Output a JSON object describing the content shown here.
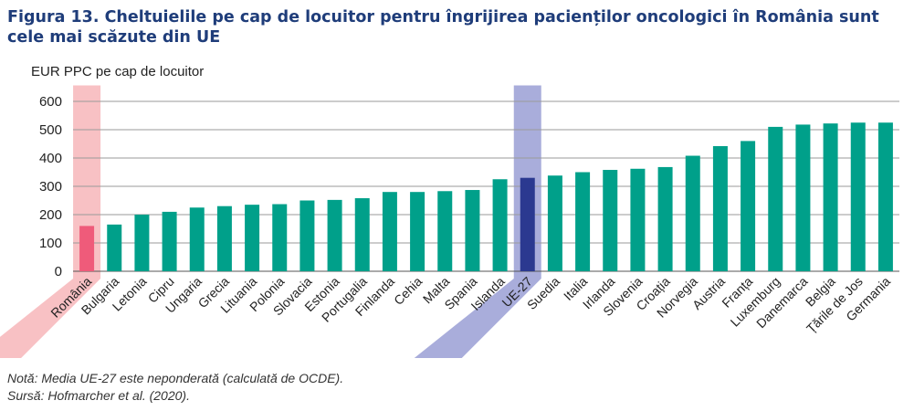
{
  "title": "Figura 13. Cheltuielile pe cap de locuitor pentru îngrijirea pacienților oncologici în România sunt cele mai scăzute din UE",
  "ylabel": "EUR PPC pe cap de locuitor",
  "note": "Notă: Media UE-27 este neponderată (calculată de OCDE).",
  "source": "Sursă: Hofmarcher et al. (2020).",
  "colors": {
    "default": "#00a08a",
    "romania": "#ef5b7a",
    "eu": "#2b3990",
    "romania_band": "#f8c1c4",
    "eu_band": "#a9addb"
  },
  "chart_data": {
    "type": "bar",
    "ylim": [
      0,
      650
    ],
    "yticks": [
      "0",
      "100",
      "200",
      "300",
      "400",
      "500",
      "600"
    ],
    "grid": true,
    "categories": [
      "România",
      "Bulgaria",
      "Letonia",
      "Cipru",
      "Ungaria",
      "Grecia",
      "Lituania",
      "Polonia",
      "Slovacia",
      "Estonia",
      "Portugalia",
      "Finlanda",
      "Cehia",
      "Malta",
      "Spania",
      "Islanda",
      "UE-27",
      "Suedia",
      "Italia",
      "Irlanda",
      "Slovenia",
      "Croația",
      "Norvegia",
      "Austria",
      "Franța",
      "Luxemburg",
      "Danemarca",
      "Belgia",
      "Țările de Jos",
      "Germania"
    ],
    "values": [
      160,
      165,
      200,
      210,
      225,
      230,
      235,
      237,
      250,
      252,
      258,
      280,
      280,
      283,
      287,
      325,
      330,
      338,
      350,
      358,
      362,
      368,
      408,
      442,
      460,
      510,
      518,
      522,
      525,
      525
    ],
    "highlight": {
      "România": "romania",
      "UE-27": "eu"
    }
  }
}
